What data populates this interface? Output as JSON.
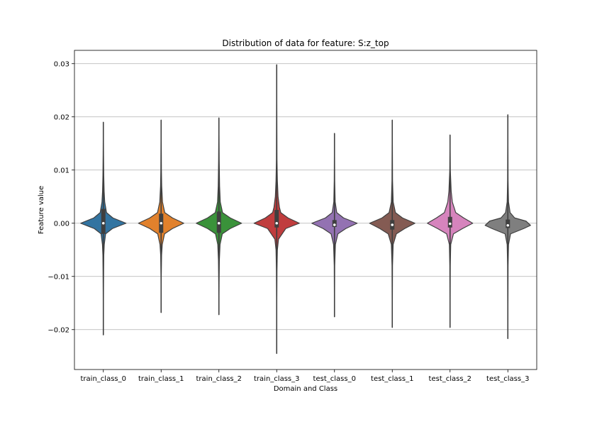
{
  "chart_data": {
    "type": "violin",
    "title": "Distribution of data for feature: S:z_top",
    "xlabel": "Domain and Class",
    "ylabel": "Feature value",
    "ylim": [
      -0.0275,
      0.0325
    ],
    "yticks": [
      -0.02,
      -0.01,
      0.0,
      0.01,
      0.02,
      0.03
    ],
    "ytick_labels": [
      "−0.02",
      "−0.01",
      "0.00",
      "0.01",
      "0.02",
      "0.03"
    ],
    "grid": "y",
    "categories": [
      "train_class_0",
      "train_class_1",
      "train_class_2",
      "train_class_3",
      "test_class_0",
      "test_class_1",
      "test_class_2",
      "test_class_3"
    ],
    "colors": [
      "#3274a1",
      "#e1812c",
      "#3a923a",
      "#c03d3e",
      "#9372b2",
      "#845b53",
      "#d684bd",
      "#7f7f7f"
    ],
    "series": [
      {
        "name": "train_class_0",
        "min": -0.021,
        "max": 0.019,
        "q1": -0.002,
        "median": 0.0,
        "q3": 0.0027,
        "profile": [
          [
            -0.021,
            0.0
          ],
          [
            -0.013,
            0.006
          ],
          [
            -0.009,
            0.012
          ],
          [
            -0.006,
            0.02
          ],
          [
            -0.004,
            0.04
          ],
          [
            -0.002,
            0.1
          ],
          [
            -0.001,
            0.4
          ],
          [
            0.0,
            1.0
          ],
          [
            0.001,
            0.42
          ],
          [
            0.002,
            0.14
          ],
          [
            0.004,
            0.06
          ],
          [
            0.006,
            0.035
          ],
          [
            0.009,
            0.018
          ],
          [
            0.013,
            0.008
          ],
          [
            0.019,
            0.0
          ]
        ]
      },
      {
        "name": "train_class_1",
        "min": -0.0168,
        "max": 0.0194,
        "q1": -0.0018,
        "median": 0.0,
        "q3": 0.0018,
        "profile": [
          [
            -0.0168,
            0.0
          ],
          [
            -0.01,
            0.006
          ],
          [
            -0.006,
            0.02
          ],
          [
            -0.004,
            0.05
          ],
          [
            -0.002,
            0.15
          ],
          [
            -0.001,
            0.5
          ],
          [
            0.0,
            1.0
          ],
          [
            0.001,
            0.5
          ],
          [
            0.002,
            0.16
          ],
          [
            0.004,
            0.06
          ],
          [
            0.007,
            0.025
          ],
          [
            0.01,
            0.012
          ],
          [
            0.0194,
            0.0
          ]
        ]
      },
      {
        "name": "train_class_2",
        "min": -0.0172,
        "max": 0.0198,
        "q1": -0.0018,
        "median": 0.0,
        "q3": 0.0022,
        "profile": [
          [
            -0.0172,
            0.0
          ],
          [
            -0.011,
            0.008
          ],
          [
            -0.007,
            0.02
          ],
          [
            -0.004,
            0.05
          ],
          [
            -0.002,
            0.15
          ],
          [
            -0.001,
            0.5
          ],
          [
            0.0,
            1.0
          ],
          [
            0.001,
            0.5
          ],
          [
            0.002,
            0.16
          ],
          [
            0.004,
            0.06
          ],
          [
            0.007,
            0.03
          ],
          [
            0.012,
            0.012
          ],
          [
            0.0198,
            0.0
          ]
        ]
      },
      {
        "name": "train_class_3",
        "min": -0.0245,
        "max": 0.0298,
        "q1": -0.0008,
        "median": 0.0,
        "q3": 0.0025,
        "profile": [
          [
            -0.0245,
            0.0
          ],
          [
            -0.014,
            0.005
          ],
          [
            -0.009,
            0.012
          ],
          [
            -0.005,
            0.03
          ],
          [
            -0.003,
            0.08
          ],
          [
            -0.001,
            0.4
          ],
          [
            0.0,
            1.0
          ],
          [
            0.001,
            0.5
          ],
          [
            0.002,
            0.18
          ],
          [
            0.003,
            0.12
          ],
          [
            0.005,
            0.06
          ],
          [
            0.008,
            0.03
          ],
          [
            0.012,
            0.012
          ],
          [
            0.0298,
            0.0
          ]
        ]
      },
      {
        "name": "test_class_0",
        "min": -0.0176,
        "max": 0.0169,
        "q1": -0.0007,
        "median": -0.0003,
        "q3": 0.0006,
        "profile": [
          [
            -0.0176,
            0.0
          ],
          [
            -0.008,
            0.01
          ],
          [
            -0.004,
            0.04
          ],
          [
            -0.002,
            0.15
          ],
          [
            -0.001,
            0.5
          ],
          [
            0.0,
            1.0
          ],
          [
            0.001,
            0.4
          ],
          [
            0.002,
            0.1
          ],
          [
            0.004,
            0.03
          ],
          [
            0.008,
            0.01
          ],
          [
            0.0169,
            0.0
          ]
        ]
      },
      {
        "name": "test_class_1",
        "min": -0.0196,
        "max": 0.0194,
        "q1": -0.0012,
        "median": -0.0003,
        "q3": 0.0006,
        "profile": [
          [
            -0.0196,
            0.0
          ],
          [
            -0.008,
            0.01
          ],
          [
            -0.004,
            0.04
          ],
          [
            -0.002,
            0.18
          ],
          [
            -0.001,
            0.55
          ],
          [
            0.0,
            1.0
          ],
          [
            0.001,
            0.45
          ],
          [
            0.002,
            0.14
          ],
          [
            0.004,
            0.04
          ],
          [
            0.008,
            0.012
          ],
          [
            0.0194,
            0.0
          ]
        ]
      },
      {
        "name": "test_class_2",
        "min": -0.0196,
        "max": 0.0166,
        "q1": -0.0008,
        "median": -0.0001,
        "q3": 0.0012,
        "profile": [
          [
            -0.0196,
            0.0
          ],
          [
            -0.008,
            0.01
          ],
          [
            -0.004,
            0.03
          ],
          [
            -0.002,
            0.15
          ],
          [
            -0.001,
            0.55
          ],
          [
            0.0,
            1.0
          ],
          [
            0.001,
            0.6
          ],
          [
            0.002,
            0.25
          ],
          [
            0.004,
            0.1
          ],
          [
            0.006,
            0.05
          ],
          [
            0.01,
            0.012
          ],
          [
            0.0166,
            0.0
          ]
        ]
      },
      {
        "name": "test_class_3",
        "min": -0.0217,
        "max": 0.0204,
        "q1": -0.0009,
        "median": -0.0004,
        "q3": 0.0007,
        "profile": [
          [
            -0.0217,
            0.0
          ],
          [
            -0.008,
            0.01
          ],
          [
            -0.004,
            0.03
          ],
          [
            -0.002,
            0.12
          ],
          [
            -0.001,
            0.7
          ],
          [
            -0.0004,
            1.0
          ],
          [
            0.0004,
            0.8
          ],
          [
            0.001,
            0.3
          ],
          [
            0.002,
            0.1
          ],
          [
            0.004,
            0.03
          ],
          [
            0.008,
            0.01
          ],
          [
            0.0204,
            0.0
          ]
        ]
      }
    ]
  }
}
